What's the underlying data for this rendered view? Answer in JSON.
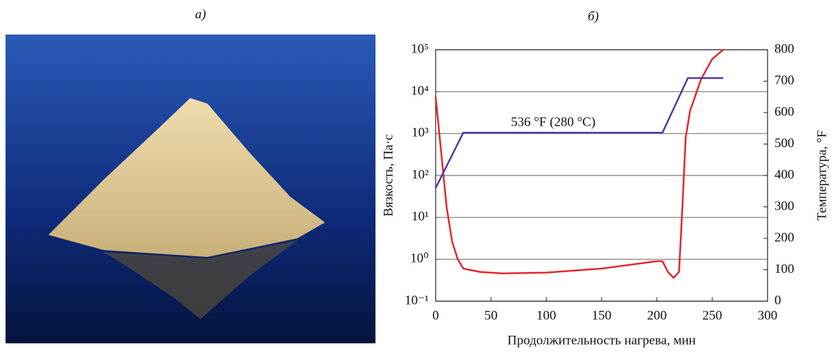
{
  "panel_labels": [
    "а)",
    "б)"
  ],
  "chart_data": {
    "type": "line",
    "annotation": "536 °F (280 °C)",
    "xlabel": "Продолжительность нагрева, мин",
    "ylabel": "Вязкость, Па·с",
    "y2label": "Температура, °F",
    "xlim": [
      0,
      300
    ],
    "xticks": [
      0,
      50,
      100,
      150,
      200,
      250,
      300
    ],
    "ylim": [
      0.1,
      100000
    ],
    "yscale": "log",
    "yticks": [
      {
        "value": 0.1,
        "label": "10⁻¹"
      },
      {
        "value": 1,
        "label": "10⁰"
      },
      {
        "value": 10,
        "label": "10¹"
      },
      {
        "value": 100,
        "label": "10²"
      },
      {
        "value": 1000,
        "label": "10³"
      },
      {
        "value": 10000,
        "label": "10⁴"
      },
      {
        "value": 100000,
        "label": "10⁵"
      }
    ],
    "y2lim": [
      0,
      800
    ],
    "y2ticks": [
      0,
      100,
      200,
      300,
      400,
      500,
      600,
      700,
      800
    ],
    "grid": true,
    "series": [
      {
        "color": "#e3262b",
        "x": [
          0,
          5,
          10,
          15,
          20,
          25,
          40,
          60,
          80,
          100,
          150,
          200,
          205,
          210,
          215,
          220,
          223,
          226,
          230,
          240,
          250,
          260
        ],
        "values": [
          7600,
          360,
          17,
          2.6,
          1,
          0.6,
          0.5,
          0.46,
          0.47,
          0.48,
          0.6,
          0.9,
          0.9,
          0.5,
          0.36,
          0.5,
          17,
          800,
          3500,
          20000,
          60000,
          100000
        ]
      },
      {
        "color": "#4b3aa6",
        "axis": "y2",
        "x": [
          0,
          25,
          205,
          228,
          260
        ],
        "values": [
          360,
          536,
          536,
          710,
          710
        ]
      }
    ]
  }
}
